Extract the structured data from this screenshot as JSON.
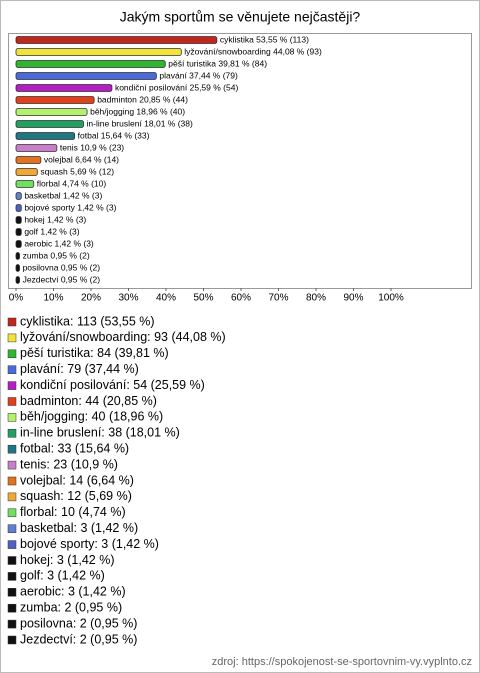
{
  "chart_data": {
    "type": "bar",
    "orientation": "horizontal",
    "title": "Jakým sportům se věnujete nejčastěji?",
    "categories": [
      "cyklistika",
      "lyžování/snowboarding",
      "pěší turistika",
      "plavání",
      "kondiční posilování",
      "badminton",
      "běh/jogging",
      "in-line bruslení",
      "fotbal",
      "tenis",
      "volejbal",
      "squash",
      "florbal",
      "basketbal",
      "bojové sporty",
      "hokej",
      "golf",
      "aerobic",
      "zumba",
      "posilovna",
      "Jezdectví"
    ],
    "values": [
      53.55,
      44.08,
      39.81,
      37.44,
      25.59,
      20.85,
      18.96,
      18.01,
      15.64,
      10.9,
      6.64,
      5.69,
      4.74,
      1.42,
      1.42,
      1.42,
      1.42,
      1.42,
      0.95,
      0.95,
      0.95
    ],
    "value_labels": [
      "cyklistika 53,55 % (113)",
      "lyžování/snowboarding 44,08 % (93)",
      "pěší turistika 39,81 % (84)",
      "plavání 37,44 % (79)",
      "kondiční posilování 25,59 % (54)",
      "badminton 20,85 % (44)",
      "běh/jogging 18,96 % (40)",
      "in-line bruslení 18,01 % (38)",
      "fotbal 15,64 % (33)",
      "tenis 10,9 % (23)",
      "volejbal 6,64 % (14)",
      "squash 5,69 % (12)",
      "florbal 4,74 % (10)",
      "basketbal 1,42 % (3)",
      "bojové sporty 1,42 % (3)",
      "hokej 1,42 % (3)",
      "golf 1,42 % (3)",
      "aerobic 1,42 % (3)",
      "zumba 0,95 % (2)",
      "posilovna 0,95 % (2)",
      "Jezdectví 0,95 % (2)"
    ],
    "legend_labels": [
      "cyklistika: 113 (53,55 %)",
      "lyžování/snowboarding: 93 (44,08 %)",
      "pěší turistika: 84 (39,81 %)",
      "plavání: 79 (37,44 %)",
      "kondiční posilování: 54 (25,59 %)",
      "badminton: 44 (20,85 %)",
      "běh/jogging: 40 (18,96 %)",
      "in-line bruslení: 38 (18,01 %)",
      "fotbal: 33 (15,64 %)",
      "tenis: 23 (10,9 %)",
      "volejbal: 14 (6,64 %)",
      "squash: 12 (5,69 %)",
      "florbal: 10 (4,74 %)",
      "basketbal: 3 (1,42 %)",
      "bojové sporty: 3 (1,42 %)",
      "hokej: 3 (1,42 %)",
      "golf: 3 (1,42 %)",
      "aerobic: 3 (1,42 %)",
      "zumba: 2 (0,95 %)",
      "posilovna: 2 (0,95 %)",
      "Jezdectví: 2 (0,95 %)"
    ],
    "colors": [
      "#c0281e",
      "#f2e33a",
      "#2fb52f",
      "#4a6ad8",
      "#b21fc2",
      "#e0401c",
      "#b4f06a",
      "#22a060",
      "#1f7582",
      "#c67fc8",
      "#e07220",
      "#f2a634",
      "#6ee05e",
      "#5f7fd0",
      "#4f5fc4",
      "#111111",
      "#111111",
      "#111111",
      "#111111",
      "#111111",
      "#111111"
    ],
    "xlim": [
      0,
      100
    ],
    "xticks": [
      {
        "value": 0,
        "label": "0%"
      },
      {
        "value": 10,
        "label": "10%"
      },
      {
        "value": 20,
        "label": "20%"
      },
      {
        "value": 30,
        "label": "30%"
      },
      {
        "value": 40,
        "label": "40%"
      },
      {
        "value": 50,
        "label": "50%"
      },
      {
        "value": 60,
        "label": "60%"
      },
      {
        "value": 70,
        "label": "70%"
      },
      {
        "value": 80,
        "label": "80%"
      },
      {
        "value": 90,
        "label": "90%"
      },
      {
        "value": 100,
        "label": "100%"
      }
    ],
    "grid": false,
    "source": "zdroj: https://spokojenost-se-sportovnim-vy.vyplnto.cz"
  }
}
